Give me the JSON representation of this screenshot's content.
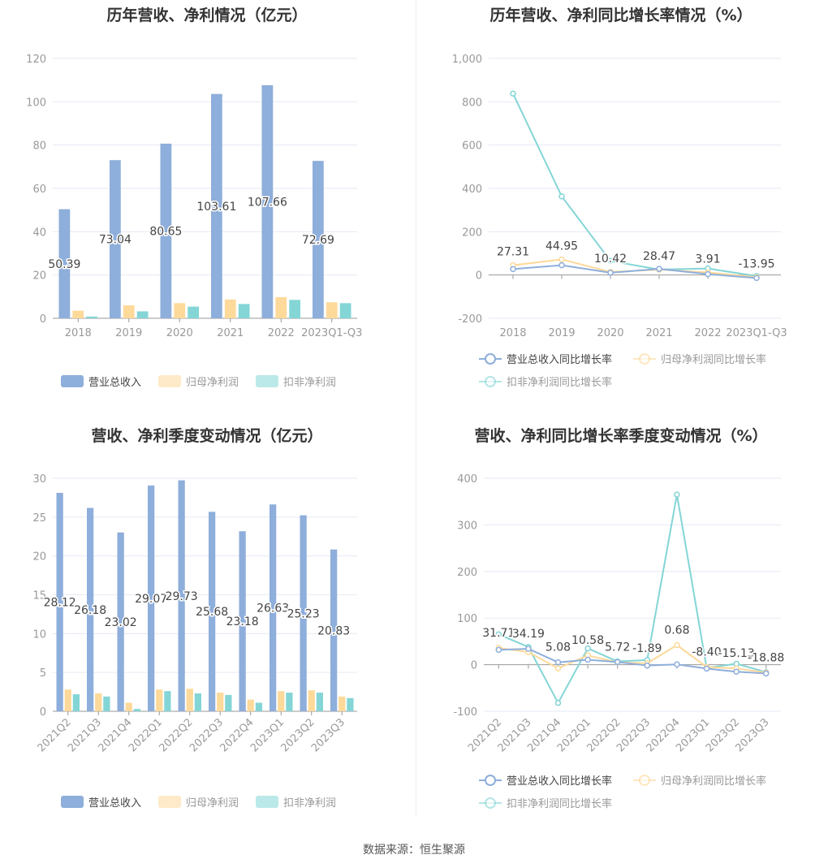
{
  "footer": "数据来源：恒生聚源",
  "colors": {
    "revenue": "#8eaedb",
    "net": "#fdd99a",
    "deducted": "#84d5d6",
    "grid": "#e6eaf4",
    "axis": "#999",
    "label": "#999"
  },
  "chart_data": [
    {
      "id": "c1",
      "type": "bar",
      "title": "历年营收、净利情况（亿元）",
      "categories": [
        "2018",
        "2019",
        "2020",
        "2021",
        "2022",
        "2023Q1-Q3"
      ],
      "ylim": [
        0,
        120
      ],
      "yticks": [
        0,
        20,
        40,
        60,
        80,
        100,
        120
      ],
      "series": [
        {
          "name": "营业总收入",
          "values": [
            50.39,
            73.04,
            80.65,
            103.61,
            107.66,
            72.69
          ],
          "labels": [
            "50.39",
            "73.04",
            "80.65",
            "103.61",
            "107.66",
            "72.69"
          ]
        },
        {
          "name": "归母净利润",
          "values": [
            3.5,
            6.0,
            7.0,
            8.7,
            9.8,
            7.4
          ]
        },
        {
          "name": "扣非净利润",
          "values": [
            0.8,
            3.2,
            5.4,
            6.6,
            8.5,
            7.0
          ]
        }
      ],
      "legend": "bottom"
    },
    {
      "id": "c2",
      "type": "line",
      "title": "历年营收、净利同比增长率情况（%）",
      "categories": [
        "2018",
        "2019",
        "2020",
        "2021",
        "2022",
        "2023Q1-Q3"
      ],
      "ylim": [
        -200,
        1000
      ],
      "yticks": [
        -200,
        0,
        200,
        400,
        600,
        800,
        1000
      ],
      "ytick_labels": [
        "-200",
        "0",
        "200",
        "400",
        "600",
        "800",
        "1,000"
      ],
      "series": [
        {
          "name": "营业总收入同比增长率",
          "values": [
            27.31,
            44.95,
            10.42,
            28.47,
            3.91,
            -13.95
          ],
          "labels": [
            "27.31",
            "44.95",
            "10.42",
            "28.47",
            "3.91",
            "-13.95"
          ]
        },
        {
          "name": "归母净利润同比增长率",
          "values": [
            45,
            72,
            14,
            25,
            12,
            -10
          ]
        },
        {
          "name": "扣非净利润同比增长率",
          "values": [
            838,
            363,
            65,
            25,
            30,
            -5
          ]
        }
      ],
      "legend": "bottom"
    },
    {
      "id": "c3",
      "type": "bar",
      "title": "营收、净利季度变动情况（亿元）",
      "categories": [
        "2021Q2",
        "2021Q3",
        "2021Q4",
        "2022Q1",
        "2022Q2",
        "2022Q3",
        "2022Q4",
        "2023Q1",
        "2023Q2",
        "2023Q3"
      ],
      "ylim": [
        0,
        30
      ],
      "yticks": [
        0,
        5,
        10,
        15,
        20,
        25,
        30
      ],
      "series": [
        {
          "name": "营业总收入",
          "values": [
            28.12,
            26.18,
            23.02,
            29.07,
            29.73,
            25.68,
            23.18,
            26.63,
            25.23,
            20.83
          ],
          "labels": [
            "28.12",
            "26.18",
            "23.02",
            "29.07",
            "29.73",
            "25.68",
            "23.18",
            "26.63",
            "25.23",
            "20.83"
          ]
        },
        {
          "name": "归母净利润",
          "values": [
            2.8,
            2.3,
            1.1,
            2.8,
            2.9,
            2.4,
            1.5,
            2.6,
            2.7,
            1.9
          ]
        },
        {
          "name": "扣非净利润",
          "values": [
            2.2,
            1.9,
            0.3,
            2.6,
            2.3,
            2.1,
            1.1,
            2.4,
            2.4,
            1.7
          ]
        }
      ],
      "legend": "bottom"
    },
    {
      "id": "c4",
      "type": "line",
      "title": "营收、净利同比增长率季度变动情况（%）",
      "categories": [
        "2021Q2",
        "2021Q3",
        "2021Q4",
        "2022Q1",
        "2022Q2",
        "2022Q3",
        "2022Q4",
        "2023Q1",
        "2023Q2",
        "2023Q3"
      ],
      "ylim": [
        -100,
        400
      ],
      "yticks": [
        -100,
        0,
        100,
        200,
        300,
        400
      ],
      "series": [
        {
          "name": "营业总收入同比增长率",
          "values": [
            31.71,
            34.19,
            5.08,
            10.58,
            5.72,
            -1.89,
            0.68,
            -8.4,
            -15.13,
            -18.88
          ],
          "labels": [
            "31.71",
            "34.19",
            "5.08",
            "10.58",
            "5.72",
            "-1.89",
            "0.68",
            "-8.40",
            "-15.13",
            "-18.88"
          ]
        },
        {
          "name": "归母净利润同比增长率",
          "values": [
            36,
            27,
            -8,
            20,
            5,
            3,
            42,
            -5,
            -8,
            -17
          ]
        },
        {
          "name": "扣非净利润同比增长率",
          "values": [
            65,
            38,
            -82,
            35,
            7,
            10,
            365,
            -7,
            2,
            -16
          ]
        }
      ],
      "legend": "bottom"
    }
  ]
}
